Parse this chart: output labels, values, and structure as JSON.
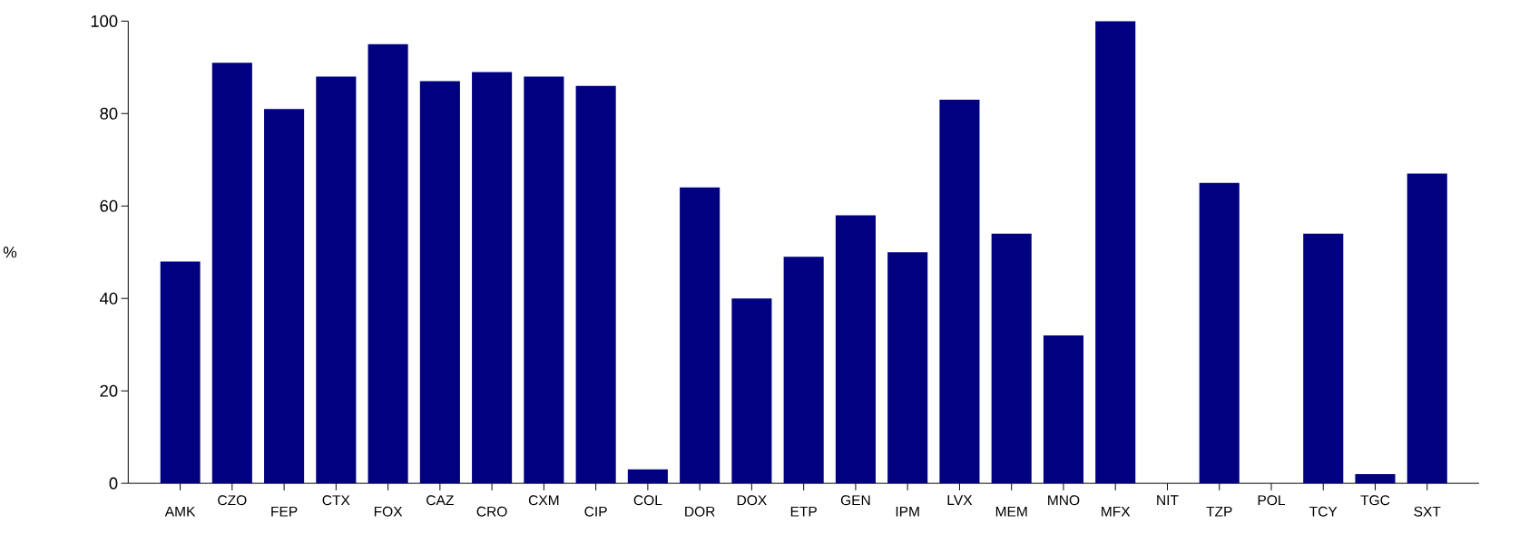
{
  "chart_data": {
    "type": "bar",
    "ylabel": "%",
    "categories": [
      "AMK",
      "CZO",
      "FEP",
      "CTX",
      "FOX",
      "CAZ",
      "CRO",
      "CXM",
      "CIP",
      "COL",
      "DOR",
      "DOX",
      "ETP",
      "GEN",
      "IPM",
      "LVX",
      "MEM",
      "MNO",
      "MFX",
      "NIT",
      "TZP",
      "POL",
      "TCY",
      "TGC",
      "SXT"
    ],
    "values": [
      48,
      91,
      81,
      88,
      95,
      87,
      89,
      88,
      86,
      3,
      64,
      40,
      49,
      58,
      50,
      83,
      54,
      32,
      100,
      null,
      65,
      null,
      54,
      2,
      67
    ],
    "color": "#000080",
    "ylim": [
      0,
      100
    ],
    "yticks": [
      0,
      20,
      40,
      60,
      80,
      100
    ],
    "grid": false
  }
}
